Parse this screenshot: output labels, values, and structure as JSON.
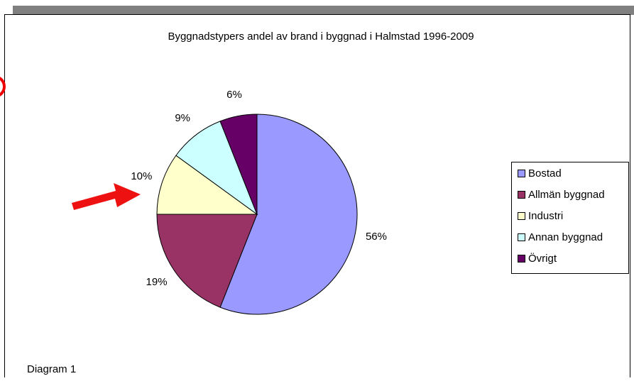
{
  "chart_data": {
    "type": "pie",
    "title": "Byggnadstypers andel av brand i byggnad i Halmstad 1996-2009",
    "categories": [
      "Bostad",
      "Allmän byggnad",
      "Industri",
      "Annan byggnad",
      "Övrigt"
    ],
    "values": [
      56,
      19,
      10,
      9,
      6
    ],
    "value_labels": [
      "56%",
      "19%",
      "10%",
      "9%",
      "6%"
    ],
    "colors": [
      "#9999ff",
      "#993366",
      "#ffffcc",
      "#ccffff",
      "#660066"
    ],
    "legend": "right"
  },
  "caption": "Diagram 1"
}
